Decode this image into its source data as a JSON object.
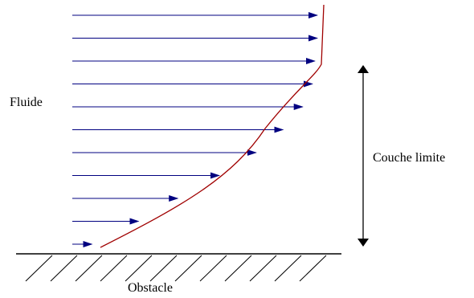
{
  "labels": {
    "fluid": "Fluide",
    "boundary_layer": "Couche limite",
    "obstacle": "Obstacle"
  },
  "colors": {
    "velocity_arrows": "#000080",
    "profile_curve": "#a00000",
    "wall": "#000000",
    "thickness_arrow": "#000000"
  },
  "velocity_profile": {
    "arrow_count": 11,
    "relative_lengths": [
      0.08,
      0.27,
      0.43,
      0.6,
      0.75,
      0.86,
      0.94,
      0.98,
      0.99,
      1.0,
      1.0
    ]
  }
}
